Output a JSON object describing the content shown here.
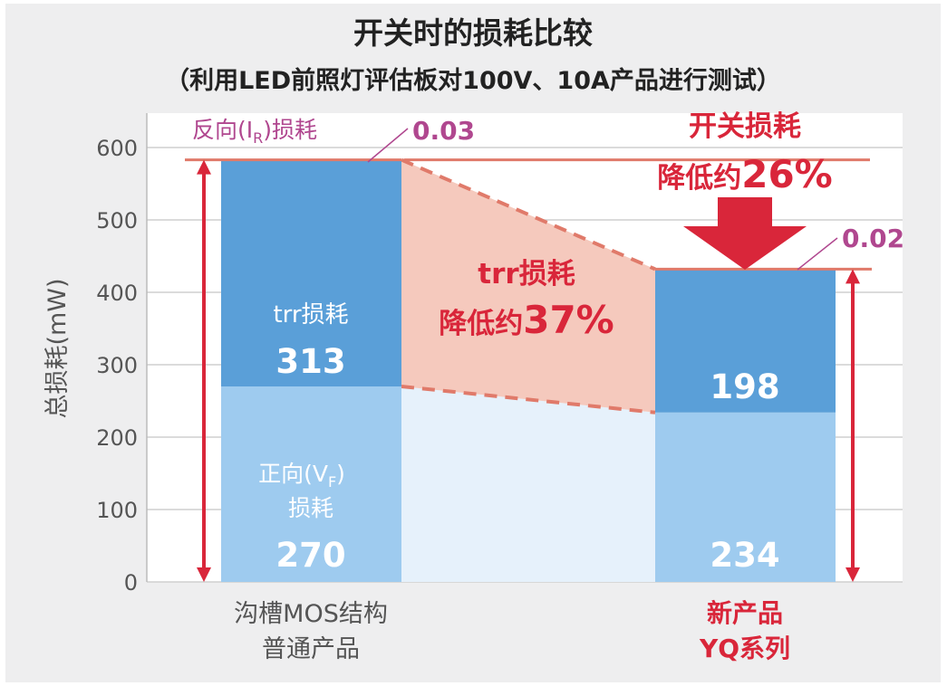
{
  "chart_data": {
    "type": "bar",
    "stacked": true,
    "title": "开关时的损耗比较",
    "subtitle": "（利用LED前照灯评估板对100V、10A产品进行测试）",
    "ylabel": "总损耗(mW)",
    "xlabel": "",
    "ylim": [
      0,
      600
    ],
    "yticks": [
      0,
      100,
      200,
      300,
      400,
      500,
      600
    ],
    "grid": true,
    "categories": [
      {
        "line1": "沟槽MOS结构",
        "line2": "普通产品",
        "emphasis": false
      },
      {
        "line1": "新产品",
        "line2": "YQ系列",
        "emphasis": true
      }
    ],
    "series": [
      {
        "name_line1": "正向(V",
        "name_sub": "F",
        "name_close": ")",
        "name_line2": "损耗",
        "values": [
          270,
          234
        ],
        "color": "#9ecbef"
      },
      {
        "name": "trr损耗",
        "values": [
          313,
          198
        ],
        "color": "#5a9fd8"
      },
      {
        "name_prefix": "反向(I",
        "name_sub": "R",
        "name_suffix": ")损耗",
        "values": [
          0.03,
          0.02
        ],
        "color": "#e07a6a"
      }
    ],
    "value_labels": {
      "forward": [
        "270",
        "234"
      ],
      "trr": [
        "313",
        ""
      ],
      "trr_new": "198",
      "reverse": [
        "0.03",
        "0.02"
      ]
    },
    "annotations": {
      "trr_reduction_line1": "trr损耗",
      "trr_reduction_prefix": "降低约",
      "trr_reduction_value": "37%",
      "switch_reduction_line1": "开关损耗",
      "switch_reduction_prefix": "降低约",
      "switch_reduction_value": "26%"
    },
    "colors": {
      "accent_red": "#d9263a",
      "reverse_label": "#b0478f",
      "reverse_line": "#e07a6a",
      "trr_band": "#f5c9bd",
      "forward_band": "#e6f1fb",
      "axis_text": "#555555"
    }
  }
}
